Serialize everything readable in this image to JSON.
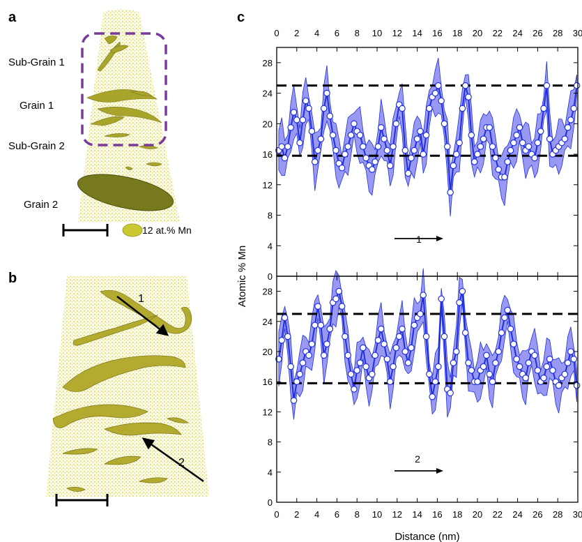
{
  "panels": {
    "a": {
      "letter": "a",
      "labels": [
        "Sub-Grain 1",
        "Grain 1",
        "Sub-Grain 2",
        "Grain 2"
      ],
      "legend_text": "12 at.% Mn",
      "colors": {
        "atoms": "#c9c84a",
        "isosurface": "#a5a02a",
        "dashed_box": "#7a3a9a"
      }
    },
    "b": {
      "letter": "b",
      "arrow_labels": [
        "1",
        "2"
      ]
    },
    "c": {
      "letter": "c",
      "arrow_labels": [
        "1",
        "2"
      ],
      "colors": {
        "line": "#1f2fe0",
        "band": "#6d6df0",
        "marker_edge": "#1f2fe0",
        "reference": "#000000"
      }
    }
  },
  "chart_data": [
    {
      "type": "line",
      "title": "",
      "xlabel": "Distance (nm)",
      "ylabel": "Atomic % Mn",
      "xlim": [
        0,
        30
      ],
      "ylim": [
        0,
        30
      ],
      "xticks": [
        0,
        2,
        4,
        6,
        8,
        10,
        12,
        14,
        16,
        18,
        20,
        22,
        24,
        26,
        28,
        30
      ],
      "yticks": [
        4,
        8,
        12,
        16,
        20,
        24,
        28
      ],
      "reference_lines": [
        15.8,
        25.0
      ],
      "grid": false,
      "x": [
        0.2,
        0.5,
        0.8,
        1.1,
        1.4,
        1.7,
        2.0,
        2.3,
        2.6,
        2.9,
        3.2,
        3.5,
        3.8,
        4.1,
        4.4,
        4.7,
        5.0,
        5.3,
        5.6,
        5.9,
        6.2,
        6.5,
        6.8,
        7.1,
        7.4,
        7.7,
        8.0,
        8.3,
        8.6,
        8.9,
        9.2,
        9.5,
        9.8,
        10.1,
        10.4,
        10.7,
        11.0,
        11.3,
        11.6,
        11.9,
        12.2,
        12.5,
        12.8,
        13.1,
        13.4,
        13.7,
        14.0,
        14.3,
        14.6,
        14.9,
        15.2,
        15.5,
        15.8,
        16.1,
        16.4,
        16.7,
        17.0,
        17.3,
        17.6,
        17.9,
        18.2,
        18.5,
        18.8,
        19.1,
        19.4,
        19.7,
        20.0,
        20.3,
        20.6,
        20.9,
        21.2,
        21.5,
        21.8,
        22.1,
        22.4,
        22.7,
        23.0,
        23.3,
        23.6,
        23.9,
        24.2,
        24.5,
        24.8,
        25.1,
        25.4,
        25.7,
        26.0,
        26.3,
        26.6,
        26.9,
        27.2,
        27.5,
        27.8,
        28.1,
        28.4,
        28.7,
        29.0,
        29.3,
        29.6,
        29.9
      ],
      "series": [
        {
          "values": [
            16.5,
            17.0,
            15.5,
            17.0,
            19.5,
            21.5,
            20.5,
            17.5,
            20.5,
            23.0,
            22.0,
            19.0,
            15.0,
            16.5,
            18.0,
            22.0,
            24.0,
            21.0,
            18.5,
            16.5,
            14.8,
            14.2,
            16.0,
            17.0,
            18.5,
            20.0,
            19.0,
            18.5,
            17.0,
            15.5,
            14.5,
            14.0,
            15.0,
            17.0,
            19.5,
            18.0,
            16.5,
            14.5,
            17.0,
            20.0,
            22.5,
            22.0,
            16.5,
            13.5,
            15.5,
            16.5,
            18.0,
            19.0,
            16.0,
            18.5,
            22.0,
            23.5,
            24.0,
            25.0,
            23.0,
            20.0,
            17.0,
            11.0,
            14.5,
            16.0,
            17.5,
            22.0,
            25.0,
            23.5,
            18.5,
            15.0,
            16.0,
            17.0,
            18.0,
            19.5,
            19.5,
            17.0,
            15.5,
            14.0,
            13.0,
            13.0,
            15.0,
            16.5,
            17.5,
            18.5,
            19.5,
            17.5,
            16.5,
            17.0,
            16.0,
            15.5,
            17.5,
            19.0,
            22.0,
            25.0,
            18.0,
            16.0,
            16.5,
            17.0,
            17.5,
            18.0,
            19.5,
            20.5,
            22.0,
            25.0
          ]
        },
        {
          "values": [
            19.0,
            21.5,
            24.5,
            22.0,
            18.0,
            13.5,
            16.0,
            17.0,
            18.5,
            20.0,
            19.5,
            21.0,
            23.5,
            26.0,
            23.5,
            19.5,
            21.0,
            23.0,
            26.5,
            27.0,
            28.0,
            26.0,
            22.0,
            19.5,
            17.0,
            15.0,
            17.5,
            18.5,
            20.5,
            18.0,
            16.5,
            17.0,
            19.5,
            21.5,
            23.0,
            21.0,
            19.0,
            16.0,
            18.0,
            20.5,
            22.0,
            23.0,
            20.0,
            18.5,
            20.5,
            23.5,
            24.5,
            25.0,
            27.5,
            22.0,
            17.0,
            14.0,
            16.0,
            18.0,
            27.0,
            22.0,
            15.0,
            14.5,
            18.5,
            20.0,
            26.5,
            28.0,
            22.5,
            18.5,
            17.5,
            16.0,
            16.0,
            17.5,
            18.0,
            19.5,
            17.0,
            16.0,
            18.5,
            20.0,
            22.5,
            24.5,
            25.5,
            23.0,
            21.0,
            19.0,
            18.0,
            17.0,
            16.5,
            18.5,
            20.0,
            19.5,
            17.5,
            16.0,
            16.5,
            18.0,
            19.0,
            17.5,
            16.0,
            15.5,
            16.5,
            17.0,
            18.5,
            20.0,
            19.0,
            15.5
          ]
        }
      ]
    }
  ]
}
